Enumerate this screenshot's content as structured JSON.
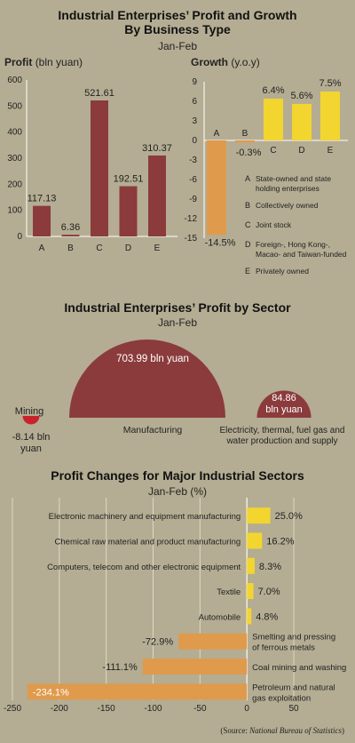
{
  "section1": {
    "title_line1": "Industrial Enterprises’ Profit and Growth",
    "title_line2": "By Business Type",
    "period": "Jan-Feb",
    "profit_title": "Profit",
    "profit_unit": "(bln yuan)",
    "growth_title": "Growth",
    "growth_unit": "(y.o.y)"
  },
  "section2": {
    "title": "Industrial Enterprises’ Profit by Sector",
    "period": "Jan-Feb"
  },
  "section3": {
    "title": "Profit Changes for Major Industrial Sectors",
    "period": "Jan-Feb (%)"
  },
  "source": {
    "prefix": "(Source:",
    "name": "National Bureau of Statistics",
    "suffix": ")"
  },
  "colors": {
    "background": "#b4ad93",
    "maroon": "#8b3b3c",
    "yellow": "#f3d530",
    "orange": "#e09a4c",
    "mining_red": "#c8232c",
    "grid": "#ddd7c6"
  },
  "chart_data": [
    {
      "type": "bar",
      "title": "Profit",
      "ylabel": "(bln yuan)",
      "categories": [
        "A",
        "B",
        "C",
        "D",
        "E"
      ],
      "values": [
        117.13,
        6.36,
        521.61,
        192.51,
        310.37
      ],
      "value_labels": [
        "117.13",
        "6.36",
        "521.61",
        "192.51",
        "310.37"
      ],
      "ylim": [
        0,
        600
      ],
      "yticks": [
        0,
        100,
        200,
        300,
        400,
        500,
        600
      ],
      "grid": false
    },
    {
      "type": "bar",
      "title": "Growth",
      "ylabel": "(y.o.y)",
      "categories": [
        "A",
        "B",
        "C",
        "D",
        "E"
      ],
      "values": [
        -14.5,
        -0.3,
        6.4,
        5.6,
        7.5
      ],
      "value_labels": [
        "-14.5%",
        "-0.3%",
        "6.4%",
        "5.6%",
        "7.5%"
      ],
      "ylim": [
        -15,
        9
      ],
      "yticks": [
        9,
        6,
        3,
        0,
        -3,
        -6,
        -9,
        -12,
        -15
      ],
      "grid": false,
      "legend": [
        {
          "key": "A",
          "lines": [
            "State-owned and state",
            "holding enterprises"
          ]
        },
        {
          "key": "B",
          "lines": [
            "Collectively owned"
          ]
        },
        {
          "key": "C",
          "lines": [
            "Joint stock"
          ]
        },
        {
          "key": "D",
          "lines": [
            "Foreign-, Hong Kong-,",
            "Macao- and Taiwan-funded"
          ]
        },
        {
          "key": "E",
          "lines": [
            "Privately owned"
          ]
        }
      ]
    },
    {
      "type": "pie",
      "title": "Industrial Enterprises’ Profit by Sector",
      "series": [
        {
          "name": "Mining",
          "value": -8.14,
          "value_lines": [
            "-8.14 bln",
            "yuan"
          ]
        },
        {
          "name": "Manufacturing",
          "value": 703.99,
          "value_lines": [
            "703.99 bln yuan"
          ]
        },
        {
          "name": "Electricity, thermal, fuel gas and water production and supply",
          "name_lines": [
            "Electricity, thermal, fuel gas and",
            "water production and supply"
          ],
          "value": 84.86,
          "value_lines": [
            "84.86",
            "bln yuan"
          ]
        }
      ]
    },
    {
      "type": "bar",
      "orientation": "horizontal",
      "title": "Profit Changes for Major Industrial Sectors",
      "categories": [
        "Electronic machinery and equipment manufacturing",
        "Chemical raw material and product manufacturing",
        "Computers, telecom and other electronic equipment",
        "Textile",
        "Automobile",
        "Smelting and pressing of ferrous metals",
        "Coal mining and washing",
        "Petroleum and natural gas exploitation"
      ],
      "category_lines": [
        [
          "Electronic machinery and equipment manufacturing"
        ],
        [
          "Chemical raw material and product manufacturing"
        ],
        [
          "Computers, telecom and other electronic equipment"
        ],
        [
          "Textile"
        ],
        [
          "Automobile"
        ],
        [
          "Smelting and pressing",
          "of ferrous metals"
        ],
        [
          "Coal mining and washing"
        ],
        [
          "Petroleum and natural",
          "gas exploitation"
        ]
      ],
      "values": [
        25.0,
        16.2,
        8.3,
        7.0,
        4.8,
        -72.9,
        -111.1,
        -234.1
      ],
      "value_labels": [
        "25.0%",
        "16.2%",
        "8.3%",
        "7.0%",
        "4.8%",
        "-72.9%",
        "-111.1%",
        "-234.1%"
      ],
      "xlim": [
        -250,
        50
      ],
      "xticks": [
        -250,
        -200,
        -150,
        -100,
        -50,
        0,
        50
      ],
      "grid": false
    }
  ]
}
